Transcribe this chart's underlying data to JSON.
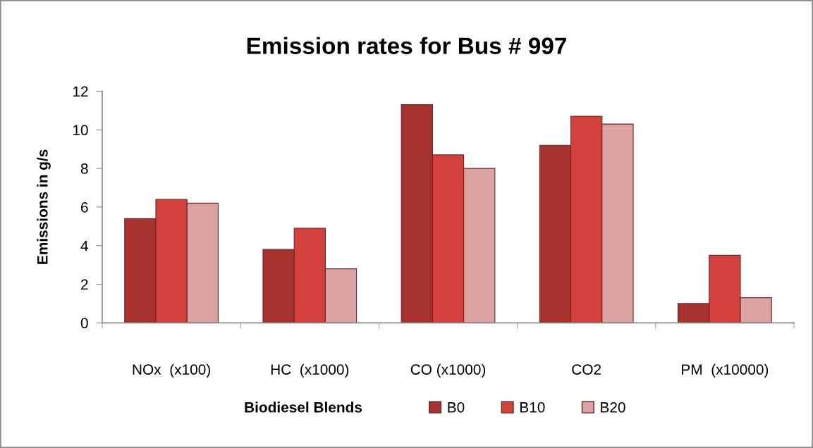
{
  "chart_data": {
    "type": "bar",
    "title": "Emission rates for Bus # 997",
    "ylabel": "Emissions in g/s",
    "legend_title": "Biodiesel Blends",
    "categories": [
      "NOx  (x100)",
      "HC  (x1000)",
      "CO (x1000)",
      "CO2",
      "PM  (x10000)"
    ],
    "series": [
      {
        "name": "B0",
        "color": "#a8322e",
        "values": [
          5.4,
          3.8,
          11.3,
          9.2,
          1.0
        ]
      },
      {
        "name": "B10",
        "color": "#d4403c",
        "values": [
          6.4,
          4.9,
          8.7,
          10.7,
          3.5
        ]
      },
      {
        "name": "B20",
        "color": "#dca2a2",
        "values": [
          6.2,
          2.8,
          8.0,
          10.3,
          1.3
        ]
      }
    ],
    "ylim": [
      0,
      12
    ],
    "yticks": [
      0,
      2,
      4,
      6,
      8,
      10,
      12
    ],
    "grid": false,
    "legend": "bottom"
  }
}
